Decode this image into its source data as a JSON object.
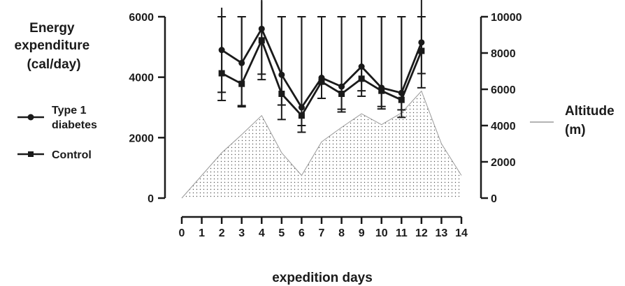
{
  "chart_data": {
    "type": "line",
    "title": "",
    "xlabel": "expedition days",
    "ylabel_lines": [
      "Energy",
      "expenditure",
      "(cal/day)"
    ],
    "y2label_lines": [
      "Altitude",
      "(m)"
    ],
    "x_ticks": [
      "0",
      "1",
      "2",
      "3",
      "4",
      "5",
      "6",
      "7",
      "8",
      "9",
      "10",
      "11",
      "12",
      "13",
      "14"
    ],
    "y_ticks": [
      "0",
      "2000",
      "4000",
      "6000"
    ],
    "y2_ticks": [
      "0",
      "2000",
      "4000",
      "6000",
      "8000",
      "10000"
    ],
    "xlim": [
      0,
      14
    ],
    "ylim": [
      0,
      6000
    ],
    "y2lim": [
      0,
      10000
    ],
    "legend": [
      {
        "name_lines": [
          "Type 1",
          "diabetes"
        ],
        "marker": "circle"
      },
      {
        "name_lines": [
          "Control"
        ],
        "marker": "square"
      }
    ],
    "altitude_label_lines": [
      "Altitude",
      "(m)"
    ],
    "series": [
      {
        "name": "Type 1 diabetes",
        "marker": "circle",
        "axis": "left",
        "x": [
          2,
          3,
          4,
          5,
          6,
          7,
          8,
          9,
          10,
          11,
          12
        ],
        "y": [
          4900,
          4470,
          5600,
          4080,
          3000,
          3980,
          3690,
          4350,
          3650,
          3480,
          5150
        ],
        "error": [
          1400,
          1450,
          1500,
          1000,
          600,
          680,
          750,
          800,
          620,
          560,
          1500
        ]
      },
      {
        "name": "Control",
        "marker": "square",
        "axis": "left",
        "x": [
          2,
          3,
          4,
          5,
          6,
          7,
          8,
          9,
          10,
          11,
          12
        ],
        "y": [
          4130,
          3780,
          5220,
          3450,
          2730,
          3850,
          3450,
          3950,
          3550,
          3250,
          4870
        ],
        "error": [
          900,
          720,
          1300,
          850,
          550,
          550,
          600,
          580,
          600,
          580,
          750
        ]
      },
      {
        "name": "Altitude",
        "type": "area",
        "axis": "right",
        "x": [
          0,
          1,
          2,
          3,
          4,
          5,
          6,
          7,
          8,
          9,
          10,
          11,
          12,
          13,
          14
        ],
        "y": [
          0,
          1250,
          2500,
          3500,
          4550,
          2500,
          1250,
          3100,
          3900,
          4650,
          4050,
          4700,
          5900,
          3000,
          1250
        ]
      }
    ],
    "colors": {
      "lines": "#1a1a1a",
      "area_fill": "#ffffff",
      "area_dots": "#555555",
      "area_edge": "#9a9a9a",
      "axis": "#1a1a1a"
    },
    "grid": false
  }
}
